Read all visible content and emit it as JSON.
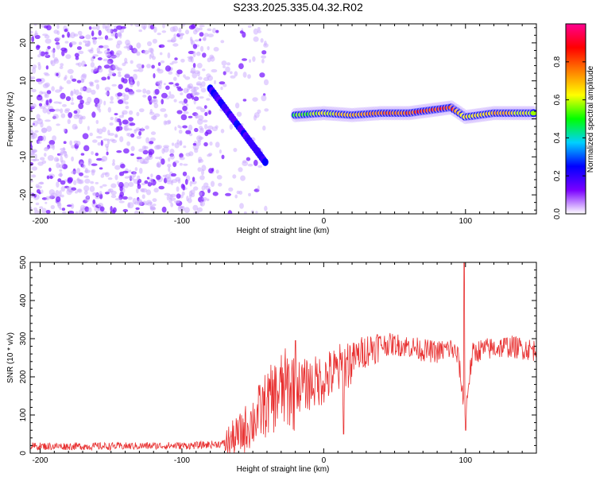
{
  "title": "S233.2025.335.04.32.R02",
  "chart_data": [
    {
      "type": "heatmap",
      "xlabel": "Height of straight line (km)",
      "ylabel": "Frequency (Hz)",
      "xlim": [
        -207,
        150
      ],
      "ylim": [
        -25,
        25
      ],
      "xticks": [
        -200,
        -100,
        0,
        100
      ],
      "yticks": [
        -20,
        -10,
        0,
        10,
        20
      ],
      "colorbar": {
        "label": "Normalized spectral amplitude",
        "range": [
          0,
          1
        ],
        "ticks": [
          0.0,
          0.2,
          0.4,
          0.6,
          0.8
        ],
        "tick_labels": [
          "0.0",
          "0.2",
          "0.4",
          "0.6",
          "0.8"
        ],
        "colors": [
          "#ffffff",
          "#7a00ff",
          "#0000ff",
          "#00d0ff",
          "#00ff00",
          "#ffff00",
          "#ff8000",
          "#ff0000",
          "#ff0090"
        ]
      },
      "band": {
        "description_x": [
          -20,
          0,
          20,
          40,
          60,
          80,
          90,
          100,
          120,
          150
        ],
        "frequency": [
          1,
          1.5,
          1,
          1.5,
          1.5,
          2.5,
          3,
          0.5,
          1.5,
          1.5
        ],
        "amplitude": [
          0.5,
          0.6,
          0.7,
          0.75,
          0.8,
          0.85,
          0.85,
          0.6,
          0.7,
          0.6
        ]
      },
      "chirp_x": [
        -80,
        -70,
        -60,
        -50,
        -40
      ],
      "chirp_frequency": [
        8,
        3,
        -2,
        -7,
        -12
      ]
    },
    {
      "type": "line",
      "xlabel": "Height of straight line (km)",
      "ylabel": "SNR (10 * v/v)",
      "xlim": [
        -207,
        150
      ],
      "ylim": [
        0,
        500
      ],
      "xticks": [
        -200,
        -100,
        0,
        100
      ],
      "yticks": [
        0,
        100,
        200,
        300,
        400,
        500
      ],
      "series": [
        {
          "name": "SNR",
          "color": "#e83030",
          "x": [
            -207,
            -180,
            -150,
            -120,
            -90,
            -70,
            -60,
            -50,
            -40,
            -30,
            -20,
            -10,
            0,
            10,
            20,
            30,
            40,
            50,
            60,
            70,
            80,
            90,
            95,
            98,
            100,
            102,
            105,
            110,
            120,
            130,
            140,
            150
          ],
          "y": [
            18,
            18,
            18,
            19,
            20,
            25,
            45,
            85,
            130,
            165,
            175,
            180,
            195,
            215,
            245,
            270,
            285,
            285,
            280,
            270,
            265,
            275,
            250,
            150,
            100,
            180,
            260,
            270,
            275,
            280,
            275,
            270
          ]
        }
      ],
      "spikes": [
        {
          "x": -20,
          "y": 295
        },
        {
          "x": 14,
          "y": 50
        },
        {
          "x": 99,
          "y": 500
        },
        {
          "x": 100,
          "y": 60
        }
      ]
    }
  ]
}
